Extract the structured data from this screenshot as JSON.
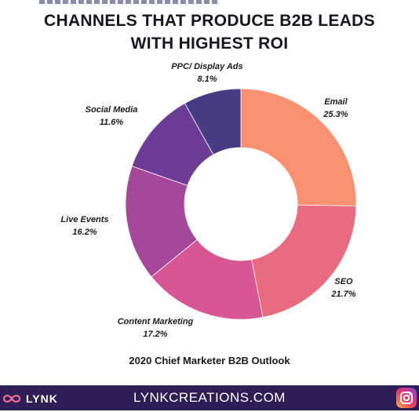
{
  "title_lines": [
    "CHANNELS THAT PRODUCE B2B LEADS",
    "WITH HIGHEST ROI"
  ],
  "source": "2020 Chief Marketer B2B Outlook",
  "footer": {
    "brand": "LYNK",
    "website": "LYNKCREATIONS.COM",
    "brand_icon": "infinity-icon",
    "social_icon": "instagram-icon"
  },
  "chart_data": {
    "type": "pie",
    "donut": true,
    "categories": [
      "Email",
      "SEO",
      "Content Marketing",
      "Live Events",
      "Social Media",
      "PPC/ Display Ads"
    ],
    "values": [
      25.3,
      21.7,
      17.2,
      16.2,
      11.6,
      8.1
    ],
    "value_labels": [
      "25.3%",
      "21.7%",
      "17.2%",
      "16.2%",
      "11.6%",
      "8.1%"
    ],
    "colors": [
      "#fb916e",
      "#ea6b7f",
      "#d75693",
      "#a6479a",
      "#6d3d95",
      "#463c84"
    ],
    "legend": "none",
    "title": "CHANNELS THAT PRODUCE B2B LEADS WITH HIGHEST ROI"
  }
}
